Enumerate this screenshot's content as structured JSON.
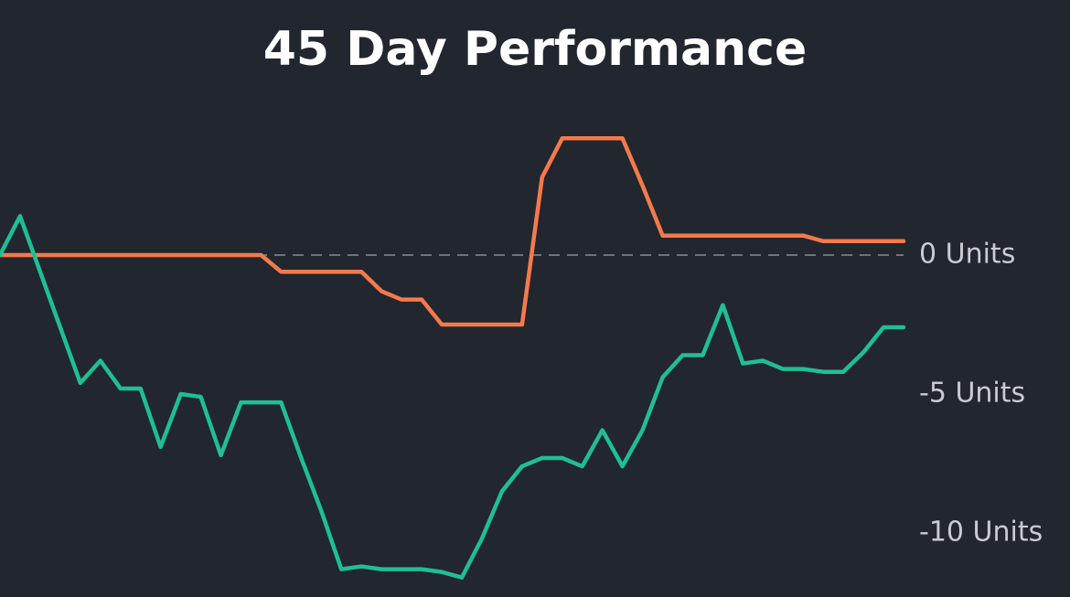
{
  "chart_data": {
    "type": "line",
    "title": "45 Day Performance",
    "series": [
      {
        "name": "Orange",
        "color": "#f47a4c",
        "values": [
          0,
          0,
          0,
          0,
          0,
          0,
          0,
          0,
          0,
          0,
          0,
          0,
          0,
          0,
          -0.6,
          -0.6,
          -0.6,
          -0.6,
          -0.6,
          -1.3,
          -1.6,
          -1.6,
          -2.5,
          -2.5,
          -2.5,
          -2.5,
          -2.5,
          2.8,
          4.2,
          4.2,
          4.2,
          4.2,
          2.5,
          0.7,
          0.7,
          0.7,
          0.7,
          0.7,
          0.7,
          0.7,
          0.7,
          0.5,
          0.5,
          0.5,
          0.5,
          0.5
        ]
      },
      {
        "name": "Green",
        "color": "#1fbf95",
        "values": [
          0,
          1.4,
          -0.6,
          -2.6,
          -4.6,
          -3.8,
          -4.8,
          -4.8,
          -6.9,
          -5.0,
          -5.1,
          -7.2,
          -5.3,
          -5.3,
          -5.3,
          -7.3,
          -9.2,
          -11.3,
          -11.2,
          -11.3,
          -11.3,
          -11.3,
          -11.4,
          -11.6,
          -10.2,
          -8.5,
          -7.6,
          -7.3,
          -7.3,
          -7.6,
          -6.3,
          -7.6,
          -6.3,
          -4.4,
          -3.6,
          -3.6,
          -1.8,
          -3.9,
          -3.8,
          -4.1,
          -4.1,
          -4.2,
          -4.2,
          -3.5,
          -2.6,
          -2.6
        ]
      }
    ],
    "ylim": [
      -12.3,
      4.9
    ],
    "yticks": [
      {
        "value": 0,
        "label": "0 Units"
      },
      {
        "value": -5,
        "label": "-5 Units"
      },
      {
        "value": -10,
        "label": "-10 Units"
      }
    ],
    "grid": false,
    "reference_line": {
      "value": 0,
      "style": "dashed"
    }
  }
}
